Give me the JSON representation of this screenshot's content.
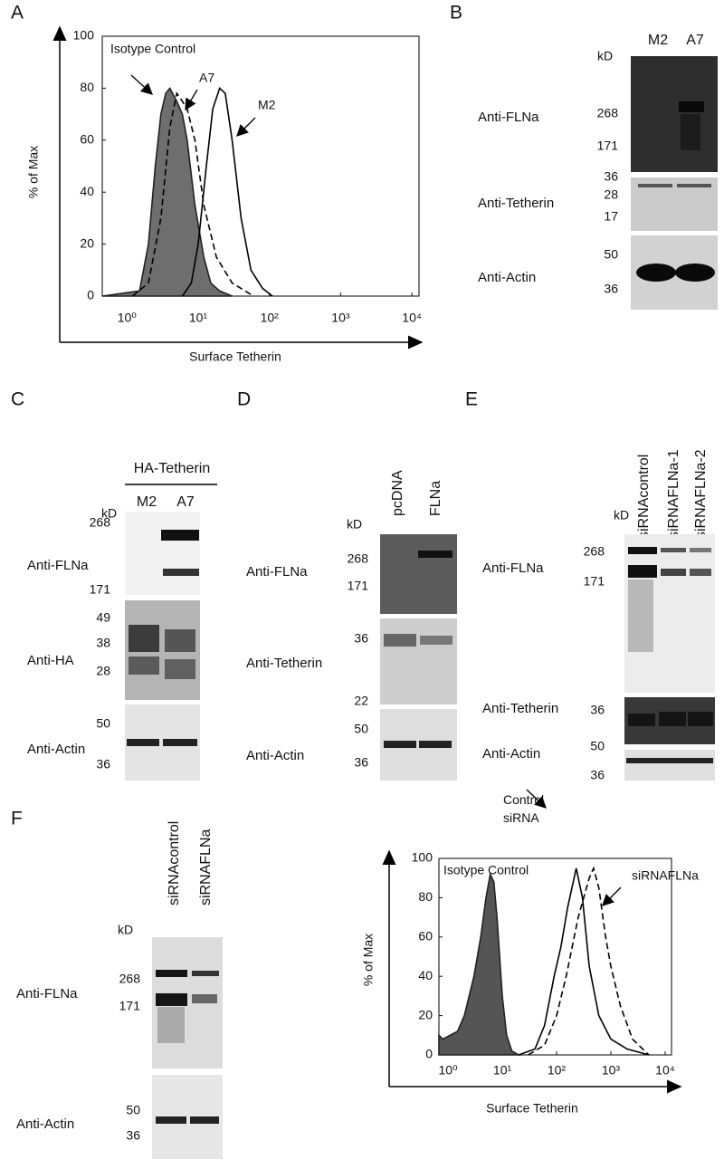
{
  "panel_labels": [
    "A",
    "B",
    "C",
    "D",
    "E",
    "F"
  ],
  "chart_data": [
    {
      "type": "line",
      "xlabel": "Surface Tetherin",
      "ylabel": "% of Max",
      "xlog": true,
      "xlim": [
        0.45,
        12600
      ],
      "ylim": [
        0,
        100
      ],
      "xticks": [
        {
          "value": 1,
          "label": "10⁰"
        },
        {
          "value": 10,
          "label": "10¹"
        },
        {
          "value": 100,
          "label": "10²"
        },
        {
          "value": 1000,
          "label": "10³"
        },
        {
          "value": 10000,
          "label": "10⁴"
        }
      ],
      "yticks": [
        0,
        20,
        40,
        60,
        80,
        100
      ],
      "series": [
        {
          "name": "Isotype Control",
          "color": "#6e6e6e",
          "fill": true,
          "dash": false,
          "x": [
            0.45,
            1.5,
            2,
            2.5,
            3,
            3.5,
            4,
            5,
            6,
            7,
            9,
            12,
            15,
            20,
            30
          ],
          "values": [
            0,
            2,
            20,
            50,
            70,
            78,
            80,
            75,
            70,
            60,
            35,
            15,
            5,
            2,
            0
          ]
        },
        {
          "name": "A7",
          "color": "#000000",
          "fill": false,
          "dash": true,
          "x": [
            1.2,
            2,
            3,
            4,
            5,
            6,
            7,
            9,
            12,
            18,
            30,
            60
          ],
          "values": [
            0,
            5,
            30,
            65,
            78,
            75,
            72,
            60,
            35,
            15,
            5,
            0
          ]
        },
        {
          "name": "M2",
          "color": "#000000",
          "fill": false,
          "dash": false,
          "x": [
            6,
            8,
            10,
            13,
            16,
            20,
            24,
            30,
            40,
            55,
            80,
            110
          ],
          "values": [
            0,
            5,
            20,
            50,
            72,
            80,
            78,
            60,
            30,
            10,
            3,
            0
          ]
        }
      ]
    },
    {
      "type": "line",
      "xlabel": "Surface Tetherin",
      "ylabel": "% of Max",
      "xlog": true,
      "xlim": [
        0.68,
        13100
      ],
      "ylim": [
        0,
        100
      ],
      "xticks": [
        {
          "value": 1,
          "label": "10⁰"
        },
        {
          "value": 10,
          "label": "10¹"
        },
        {
          "value": 100,
          "label": "10²"
        },
        {
          "value": 1000,
          "label": "10³"
        },
        {
          "value": 10000,
          "label": "10⁴"
        }
      ],
      "yticks": [
        0,
        20,
        40,
        60,
        80,
        100
      ],
      "series": [
        {
          "name": "Isotype Control",
          "color": "#555555",
          "fill": true,
          "dash": false,
          "x": [
            0.68,
            0.8,
            1.5,
            2,
            3,
            4,
            5,
            6,
            7,
            8,
            10,
            12,
            15,
            20
          ],
          "values": [
            10,
            8,
            12,
            20,
            40,
            60,
            80,
            92,
            88,
            70,
            30,
            10,
            2,
            0
          ]
        },
        {
          "name": "Control siRNA",
          "color": "#000000",
          "fill": false,
          "dash": false,
          "x": [
            20,
            40,
            60,
            90,
            120,
            160,
            230,
            300,
            400,
            600,
            1000,
            2000,
            5000
          ],
          "values": [
            0,
            3,
            15,
            40,
            55,
            75,
            95,
            80,
            45,
            20,
            8,
            3,
            0
          ]
        },
        {
          "name": "siRNAFLNa",
          "color": "#000000",
          "fill": false,
          "dash": true,
          "x": [
            30,
            60,
            100,
            150,
            250,
            400,
            480,
            600,
            800,
            1000,
            1500,
            2500,
            5000
          ],
          "values": [
            0,
            5,
            20,
            40,
            70,
            90,
            95,
            85,
            60,
            45,
            25,
            8,
            0
          ]
        }
      ]
    }
  ],
  "blots": [
    {
      "lanes": [
        "M2",
        "A7"
      ],
      "unit": "kD",
      "rows": [
        {
          "antibody": "Anti-FLNa",
          "markers": [
            268,
            171
          ]
        },
        {
          "antibody": "Anti-Tetherin",
          "markers": [
            36,
            28,
            17
          ]
        },
        {
          "antibody": "Anti-Actin",
          "markers": [
            50,
            36
          ]
        }
      ]
    },
    {
      "header": "HA-Tetherin",
      "lanes": [
        "M2",
        "A7"
      ],
      "unit": "kD",
      "rows": [
        {
          "antibody": "Anti-FLNa",
          "markers": [
            268,
            171
          ]
        },
        {
          "antibody": "Anti-HA",
          "markers": [
            49,
            38,
            28
          ]
        },
        {
          "antibody": "Anti-Actin",
          "markers": [
            50,
            36
          ]
        }
      ]
    },
    {
      "lanes": [
        "pcDNA",
        "FLNa"
      ],
      "unit": "kD",
      "rows": [
        {
          "antibody": "Anti-FLNa",
          "markers": [
            268,
            171
          ]
        },
        {
          "antibody": "Anti-Tetherin",
          "markers": [
            36,
            22
          ]
        },
        {
          "antibody": "Anti-Actin",
          "markers": [
            50,
            36
          ]
        }
      ]
    },
    {
      "lanes": [
        "siRNAcontrol",
        "siRNAFLNa-1",
        "siRNAFLNa-2"
      ],
      "unit": "kD",
      "rows": [
        {
          "antibody": "Anti-FLNa",
          "markers": [
            268,
            171
          ]
        },
        {
          "antibody": "Anti-Tetherin",
          "markers": [
            36
          ]
        },
        {
          "antibody": "Anti-Actin",
          "markers": [
            50,
            36
          ]
        }
      ]
    },
    {
      "lanes": [
        "siRNAcontrol",
        "siRNAFLNa"
      ],
      "unit": "kD",
      "rows": [
        {
          "antibody": "Anti-FLNa",
          "markers": [
            268,
            171
          ]
        },
        {
          "antibody": "Anti-Actin",
          "markers": [
            50,
            36
          ]
        }
      ]
    }
  ]
}
